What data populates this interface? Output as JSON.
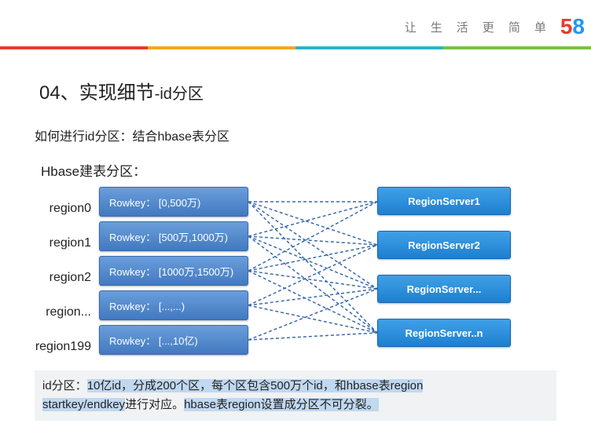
{
  "header": {
    "slogan": [
      "让",
      "生",
      "活",
      "更",
      "简",
      "单"
    ],
    "logo": {
      "d5": "5",
      "d8": "8"
    }
  },
  "topbar_colors": [
    "#e63b2e",
    "#f5a623",
    "#2db4c8",
    "#7ac143"
  ],
  "title": {
    "main": "04、实现细节",
    "sub": "-id分区"
  },
  "subtitle": "如何进行id分区：结合hbase表分区",
  "diagram_label": "Hbase建表分区：",
  "regions": [
    {
      "label": "region0",
      "rowkey": "Rowkey： [0,500万)"
    },
    {
      "label": "region1",
      "rowkey": "Rowkey： [500万,1000万)"
    },
    {
      "label": "region2",
      "rowkey": "Rowkey： [1000万,1500万)"
    },
    {
      "label": "region...",
      "rowkey": "Rowkey： [...,...)"
    },
    {
      "label": "region199",
      "rowkey": "Rowkey： [...,10亿)"
    }
  ],
  "servers": [
    "RegionServer1",
    "RegionServer2",
    "RegionServer...",
    "RegionServer..n"
  ],
  "connections": {
    "stroke": "#3a6aac",
    "width": 1.5,
    "dash": "4,3",
    "lines": [
      [
        0,
        19,
        164,
        19
      ],
      [
        0,
        19,
        164,
        74
      ],
      [
        0,
        19,
        164,
        130
      ],
      [
        0,
        19,
        164,
        186
      ],
      [
        0,
        63,
        164,
        19
      ],
      [
        0,
        63,
        164,
        74
      ],
      [
        0,
        63,
        164,
        130
      ],
      [
        0,
        63,
        164,
        186
      ],
      [
        0,
        107,
        164,
        19
      ],
      [
        0,
        107,
        164,
        74
      ],
      [
        0,
        107,
        164,
        130
      ],
      [
        0,
        107,
        164,
        186
      ],
      [
        0,
        151,
        164,
        74
      ],
      [
        0,
        151,
        164,
        130
      ],
      [
        0,
        151,
        164,
        186
      ],
      [
        0,
        195,
        164,
        130
      ],
      [
        0,
        195,
        164,
        186
      ]
    ]
  },
  "footer": {
    "t1": "id分区：",
    "h1": "10亿id，分成200个区，每个区包含500万个id，和hbase表region",
    "h2": "startkey/endkey",
    "t2": "进行对应。",
    "h3": "hbase表region设置成分区不可分裂。"
  },
  "colors": {
    "rowkey_bg_top": "#6a9edb",
    "rowkey_bg_bottom": "#4279c0",
    "rowkey_border": "#3a6aac",
    "server_bg_top": "#3fa0e8",
    "server_bg_bottom": "#1e7fd0",
    "server_border": "#1665b0",
    "footer_bg": "#f1f2f3",
    "highlight_bg": "#c0d8f0"
  }
}
